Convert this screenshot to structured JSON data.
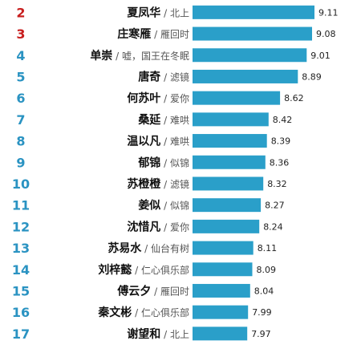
{
  "chart_data": {
    "type": "bar",
    "orientation": "horizontal",
    "xlim": [
      0,
      9.11
    ],
    "grid": false,
    "legend": "none",
    "colors": {
      "bar": "#2a9fc9",
      "rank_top": "#c81e1e",
      "rank_default": "#2a93c2",
      "name": "#111111",
      "meta": "#555555",
      "value": "#222222"
    },
    "items": [
      {
        "rank": "2",
        "name": "夏凤华",
        "work": "北上",
        "value": 9.11,
        "value_label": "9.11"
      },
      {
        "rank": "3",
        "name": "庄寒雁",
        "work": "雁回时",
        "value": 9.08,
        "value_label": "9.08"
      },
      {
        "rank": "4",
        "name": "单崇",
        "work": "嘘，国王在冬眠",
        "value": 9.01,
        "value_label": "9.01"
      },
      {
        "rank": "5",
        "name": "唐奇",
        "work": "滤镜",
        "value": 8.89,
        "value_label": "8.89"
      },
      {
        "rank": "6",
        "name": "何苏叶",
        "work": "爱你",
        "value": 8.62,
        "value_label": "8.62"
      },
      {
        "rank": "7",
        "name": "桑延",
        "work": "难哄",
        "value": 8.42,
        "value_label": "8.42"
      },
      {
        "rank": "8",
        "name": "温以凡",
        "work": "难哄",
        "value": 8.39,
        "value_label": "8.39"
      },
      {
        "rank": "9",
        "name": "郁锦",
        "work": "似锦",
        "value": 8.36,
        "value_label": "8.36"
      },
      {
        "rank": "10",
        "name": "苏橙橙",
        "work": "滤镜",
        "value": 8.32,
        "value_label": "8.32"
      },
      {
        "rank": "11",
        "name": "姜似",
        "work": "似锦",
        "value": 8.27,
        "value_label": "8.27"
      },
      {
        "rank": "12",
        "name": "沈惜凡",
        "work": "爱你",
        "value": 8.24,
        "value_label": "8.24"
      },
      {
        "rank": "13",
        "name": "苏易水",
        "work": "仙台有树",
        "value": 8.11,
        "value_label": "8.11"
      },
      {
        "rank": "14",
        "name": "刘梓懿",
        "work": "仁心俱乐部",
        "value": 8.09,
        "value_label": "8.09"
      },
      {
        "rank": "15",
        "name": "傅云夕",
        "work": "雁回时",
        "value": 8.04,
        "value_label": "8.04"
      },
      {
        "rank": "16",
        "name": "秦文彬",
        "work": "仁心俱乐部",
        "value": 7.99,
        "value_label": "7.99"
      },
      {
        "rank": "17",
        "name": "谢望和",
        "work": "北上",
        "value": 7.97,
        "value_label": "7.97"
      }
    ]
  }
}
